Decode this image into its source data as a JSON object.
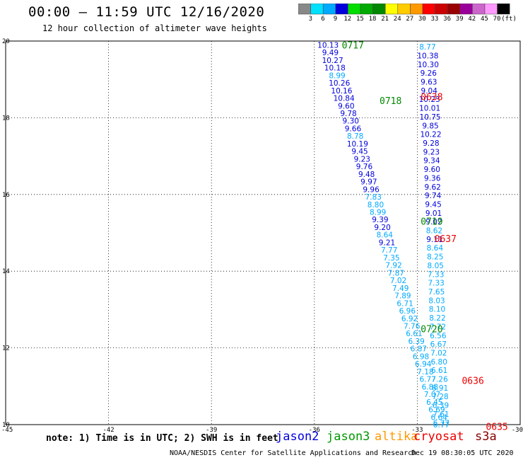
{
  "header": {
    "title": "00:00 – 11:59 UTC 12/16/2020",
    "subtitle": "12 hour collection of altimeter wave heights"
  },
  "legend": {
    "labels": [
      "3",
      "6",
      "9",
      "12",
      "15",
      "18",
      "21",
      "24",
      "27",
      "30",
      "33",
      "36",
      "39",
      "42",
      "45",
      "70"
    ],
    "unit": "(ft)",
    "colors": [
      "#888888",
      "#00e0ff",
      "#00aaff",
      "#0000dd",
      "#00dd00",
      "#00aa00",
      "#008800",
      "#ffff00",
      "#ffcc00",
      "#ff9900",
      "#ff0000",
      "#cc0000",
      "#990000",
      "#990099",
      "#cc66cc",
      "#ff99ff",
      "#000000"
    ]
  },
  "axes": {
    "x_ticks": [
      "-45",
      "-42",
      "-39",
      "-36",
      "-33",
      "-30"
    ],
    "y_ticks": [
      "20",
      "18",
      "16",
      "14",
      "12",
      "10"
    ]
  },
  "tracks": [
    {
      "name": "track-green-0717",
      "start": [
        -35.6,
        19.9
      ],
      "end": [
        -32.3,
        10.0
      ],
      "values": [
        "10.13",
        "9.49",
        "10.27",
        "10.18",
        "8.99",
        "10.26",
        "10.16",
        "10.84",
        "9.60",
        "9.78",
        "9.30",
        "9.66",
        "8.78",
        "10.19",
        "9.45",
        "9.23",
        "9.76",
        "9.48",
        "9.97",
        "9.96",
        "7.83",
        "8.80",
        "8.99",
        "9.39",
        "9.20",
        "8.64",
        "9.21",
        "7.77",
        "7.35",
        "7.92",
        "7.87",
        "7.02",
        "7.49",
        "7.89",
        "6.71",
        "6.96",
        "6.92",
        "7.76",
        "6.61",
        "6.39",
        "6.87",
        "6.98",
        "6.94",
        "7.18",
        "6.77",
        "6.88",
        "7.07",
        "6.45",
        "6.69",
        "6.64",
        "6.77"
      ],
      "colors": [
        "#0000dd",
        "#0000dd",
        "#0000dd",
        "#0000dd",
        "#00aaff",
        "#0000dd",
        "#0000dd",
        "#0000dd",
        "#0000dd",
        "#0000dd",
        "#0000dd",
        "#0000dd",
        "#00aaff",
        "#0000dd",
        "#0000dd",
        "#0000dd",
        "#0000dd",
        "#0000dd",
        "#0000dd",
        "#0000dd",
        "#00aaff",
        "#00aaff",
        "#00aaff",
        "#0000dd",
        "#0000dd",
        "#00aaff",
        "#0000dd",
        "#00aaff",
        "#00aaff",
        "#00aaff",
        "#00aaff",
        "#00aaff",
        "#00aaff",
        "#00aaff",
        "#00aaff",
        "#00aaff",
        "#00aaff",
        "#00aaff",
        "#00aaff",
        "#00aaff",
        "#00aaff",
        "#00aaff",
        "#00aaff",
        "#00aaff",
        "#00aaff",
        "#00aaff",
        "#00aaff",
        "#00aaff",
        "#00aaff",
        "#00aaff",
        "#00aaff"
      ]
    },
    {
      "name": "track-red-0638",
      "start": [
        -32.7,
        19.85
      ],
      "end": [
        -32.3,
        10.05
      ],
      "values": [
        "8.77",
        "10.38",
        "10.30",
        "9.26",
        "9.63",
        "9.04",
        "10.23",
        "10.01",
        "10.75",
        "9.85",
        "10.22",
        "9.28",
        "9.23",
        "9.34",
        "9.60",
        "9.36",
        "9.62",
        "9.74",
        "9.45",
        "9.01",
        "9.02",
        "8.62",
        "9.11",
        "8.64",
        "8.25",
        "8.05",
        "7.33",
        "7.33",
        "7.65",
        "8.03",
        "8.10",
        "8.22",
        "7.72",
        "6.56",
        "6.67",
        "7.02",
        "6.80",
        "6.61",
        "7.26",
        "6.91",
        "7.28",
        "6.39",
        "7.61",
        "6.77"
      ],
      "colors": [
        "#00aaff",
        "#0000dd",
        "#0000dd",
        "#0000dd",
        "#0000dd",
        "#0000dd",
        "#0000dd",
        "#0000dd",
        "#0000dd",
        "#0000dd",
        "#0000dd",
        "#0000dd",
        "#0000dd",
        "#0000dd",
        "#0000dd",
        "#0000dd",
        "#0000dd",
        "#0000dd",
        "#0000dd",
        "#0000dd",
        "#0000dd",
        "#00aaff",
        "#0000dd",
        "#00aaff",
        "#00aaff",
        "#00aaff",
        "#00aaff",
        "#00aaff",
        "#00aaff",
        "#00aaff",
        "#00aaff",
        "#00aaff",
        "#00aaff",
        "#00aaff",
        "#00aaff",
        "#00aaff",
        "#00aaff",
        "#00aaff",
        "#00aaff",
        "#00aaff",
        "#00aaff",
        "#00aaff",
        "#00aaff",
        "#00aaff"
      ]
    }
  ],
  "time_labels": [
    {
      "text": "0717",
      "color": "#008800",
      "lon": -35.2,
      "lat": 19.9
    },
    {
      "text": "0718",
      "color": "#008800",
      "lon": -34.1,
      "lat": 18.45
    },
    {
      "text": "0719",
      "color": "#008800",
      "lon": -32.9,
      "lat": 15.3
    },
    {
      "text": "0720",
      "color": "#008800",
      "lon": -32.9,
      "lat": 12.5
    },
    {
      "text": "0638",
      "color": "#ee0000",
      "lon": -32.9,
      "lat": 18.55
    },
    {
      "text": "0637",
      "color": "#ee0000",
      "lon": -32.5,
      "lat": 14.85
    },
    {
      "text": "0636",
      "color": "#ee0000",
      "lon": -31.7,
      "lat": 11.15
    },
    {
      "text": "0635",
      "color": "#ee0000",
      "lon": -31.0,
      "lat": 9.95
    }
  ],
  "footer": {
    "note": "note: 1) Time is in UTC; 2) SWH is in feet",
    "credit": "NOAA/NESDIS Center for Satellite Applications and Research",
    "timestamp": "Dec 19 08:30:05 UTC 2020",
    "satellites": [
      {
        "name": "jason2",
        "color": "#0000dd"
      },
      {
        "name": "jason3",
        "color": "#009900"
      },
      {
        "name": "altika",
        "color": "#ff9900"
      },
      {
        "name": "cryosat",
        "color": "#ee0000"
      },
      {
        "name": "s3a",
        "color": "#880000"
      }
    ]
  }
}
